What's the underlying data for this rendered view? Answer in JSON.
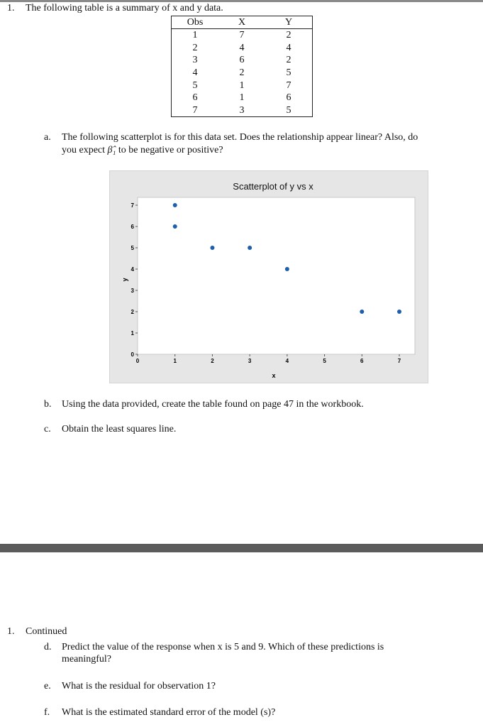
{
  "q1": {
    "number": "1.",
    "text": "The following table is a summary of x and y data."
  },
  "table": {
    "headers": [
      "Obs",
      "X",
      "Y"
    ],
    "rows": [
      [
        "1",
        "7",
        "2"
      ],
      [
        "2",
        "4",
        "4"
      ],
      [
        "3",
        "6",
        "2"
      ],
      [
        "4",
        "2",
        "5"
      ],
      [
        "5",
        "1",
        "7"
      ],
      [
        "6",
        "1",
        "6"
      ],
      [
        "7",
        "3",
        "5"
      ]
    ]
  },
  "qa": {
    "label": "a.",
    "line1": "The following scatterplot is for this data set. Does the relationship appear linear? Also, do",
    "line2_pre": "you expect ",
    "beta": "β̂₁",
    "line2_post": " to be negative or positive?"
  },
  "chart_data": {
    "type": "scatter",
    "title": "Scatterplot of y vs x",
    "xlabel": "x",
    "ylabel": "y",
    "xlim": [
      0,
      7.4
    ],
    "ylim": [
      0,
      7.4
    ],
    "xticks": [
      "0",
      "1",
      "2",
      "3",
      "4",
      "5",
      "6",
      "7"
    ],
    "yticks": [
      "0",
      "1",
      "2",
      "3",
      "4",
      "5",
      "6",
      "7"
    ],
    "x": [
      1,
      1,
      2,
      3,
      4,
      6,
      7
    ],
    "y": [
      7,
      6,
      5,
      5,
      4,
      2,
      2
    ],
    "grid": false,
    "marker_color": "#1f5ea8"
  },
  "qb": {
    "label": "b.",
    "text": "Using the data provided, create the table found on page 47 in the workbook."
  },
  "qc": {
    "label": "c.",
    "text": "Obtain the least squares line."
  },
  "cont": {
    "number": "1.",
    "text": "Continued"
  },
  "qd": {
    "label": "d.",
    "line1": "Predict the value of the response when x is 5 and 9. Which of these predictions is",
    "line2": "meaningful?"
  },
  "qe": {
    "label": "e.",
    "text": "What is the residual for observation 1?"
  },
  "qf": {
    "label": "f.",
    "text": "What is the estimated standard error of the model (s)?"
  }
}
